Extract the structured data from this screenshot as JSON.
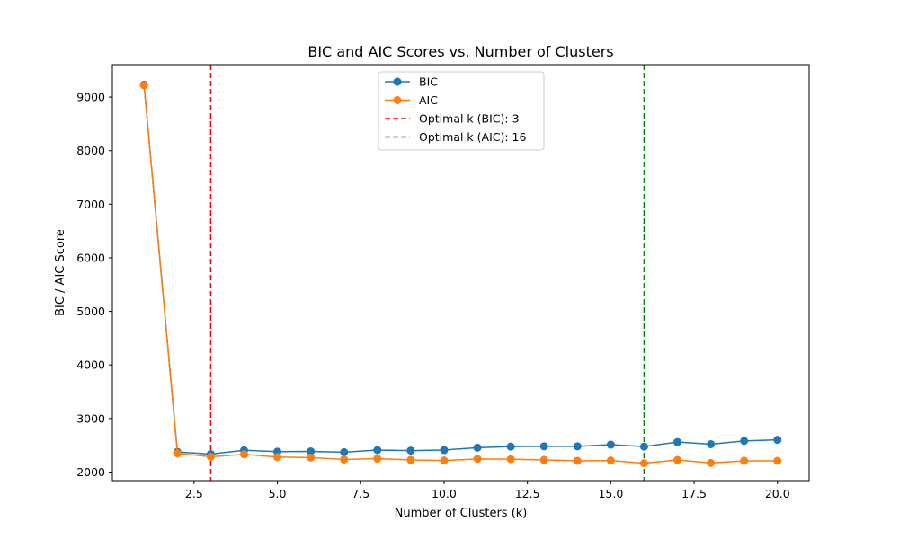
{
  "chart_data": {
    "type": "line",
    "title": "BIC and AIC Scores vs. Number of Clusters",
    "xlabel": "Number of Clusters (k)",
    "ylabel": "BIC / AIC Score",
    "xlim": [
      0.05,
      20.95
    ],
    "ylim": [
      1840,
      9605
    ],
    "xticks": [
      2.5,
      5.0,
      7.5,
      10.0,
      12.5,
      15.0,
      17.5,
      20.0
    ],
    "xtick_labels": [
      "2.5",
      "5.0",
      "7.5",
      "10.0",
      "12.5",
      "15.0",
      "17.5",
      "20.0"
    ],
    "yticks": [
      2000,
      3000,
      4000,
      5000,
      6000,
      7000,
      8000,
      9000
    ],
    "ytick_labels": [
      "2000",
      "3000",
      "4000",
      "5000",
      "6000",
      "7000",
      "8000",
      "9000"
    ],
    "grid": false,
    "legend_position": "upper-center",
    "x": [
      1,
      2,
      3,
      4,
      5,
      6,
      7,
      8,
      9,
      10,
      11,
      12,
      13,
      14,
      15,
      16,
      17,
      18,
      19,
      20
    ],
    "series": [
      {
        "name": "BIC",
        "color": "#1f77b4",
        "values": [
          9230,
          2375,
          2335,
          2405,
          2380,
          2385,
          2370,
          2410,
          2400,
          2410,
          2455,
          2475,
          2480,
          2480,
          2510,
          2475,
          2560,
          2520,
          2580,
          2600
        ]
      },
      {
        "name": "AIC",
        "color": "#ff7f0e",
        "values": [
          9220,
          2350,
          2285,
          2330,
          2280,
          2270,
          2235,
          2250,
          2225,
          2215,
          2245,
          2240,
          2225,
          2210,
          2215,
          2165,
          2225,
          2170,
          2210,
          2210
        ]
      }
    ],
    "vlines": [
      {
        "name": "Optimal k (BIC): 3",
        "x": 3,
        "color": "#ff0000",
        "style": "dashed"
      },
      {
        "name": "Optimal k (AIC): 16",
        "x": 16,
        "color": "#008000",
        "style": "dashed"
      }
    ]
  }
}
